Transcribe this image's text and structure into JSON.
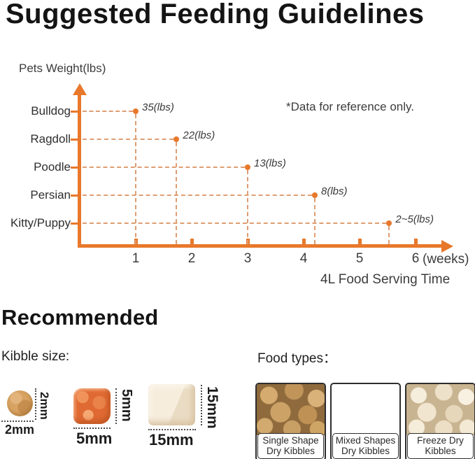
{
  "title": "Suggested Feeding Guidelines",
  "colors": {
    "accent": "#E8782B",
    "dash": "#DE9E73",
    "text": "#3C3C3C"
  },
  "chart": {
    "y_axis_title": "Pets Weight(lbs)",
    "note": "*Data for reference only.",
    "x_axis_title": "4L Food Serving Time",
    "x_unit": "(weeks)"
  },
  "chart_data": {
    "type": "scatter",
    "title": "Suggested Feeding Guidelines",
    "ylabel": "Pets Weight(lbs)",
    "xlabel": "4L Food Serving Time (weeks)",
    "note": "*Data for reference only.",
    "categories": [
      "Bulldog",
      "Ragdoll",
      "Poodle",
      "Persian",
      "Kitty/Puppy"
    ],
    "x_ticks": [
      "1",
      "2",
      "3",
      "4",
      "5",
      "6"
    ],
    "xlim": [
      0,
      6.6
    ],
    "grid": "dashed-leaders-only",
    "points": [
      {
        "pet": "Bulldog",
        "label": "35(lbs)",
        "weight_lbs": "35",
        "weeks": 1.0
      },
      {
        "pet": "Ragdoll",
        "label": "22(lbs)",
        "weight_lbs": "22",
        "weeks": 1.73
      },
      {
        "pet": "Poodle",
        "label": "13(lbs)",
        "weight_lbs": "13",
        "weeks": 3.0
      },
      {
        "pet": "Persian",
        "label": "8(lbs)",
        "weight_lbs": "8",
        "weeks": 4.2
      },
      {
        "pet": "Kitty/Puppy",
        "label": "2~5(lbs)",
        "weight_lbs": "2~5",
        "weeks": 5.53
      }
    ]
  },
  "recommended": {
    "heading": "Recommended",
    "kibble_size_label": "Kibble size:",
    "kibbles": [
      {
        "name": "round-kibble",
        "width": "2mm",
        "height": "2mm"
      },
      {
        "name": "square-kibble",
        "width": "5mm",
        "height": "5mm"
      },
      {
        "name": "cube-kibble",
        "width": "15mm",
        "height": "15mm"
      }
    ],
    "food_types_label": "Food types：",
    "food_types": [
      {
        "line1": "Single Shape",
        "line2": "Dry Kibbles"
      },
      {
        "line1": "Mixed Shapes",
        "line2": "Dry Kibbles"
      },
      {
        "line1": "Freeze Dry",
        "line2": "Kibbles"
      }
    ]
  }
}
